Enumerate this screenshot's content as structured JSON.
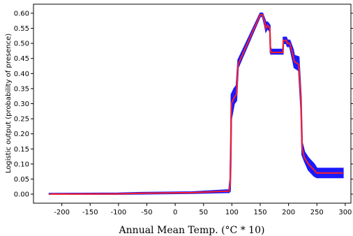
{
  "chart_data": {
    "type": "line",
    "title": "",
    "xlabel": "Annual Mean Temp. (°C * 10)",
    "ylabel": "Logistic output (probability of presence)",
    "xlim": [
      -250,
      310
    ],
    "ylim": [
      -0.03,
      0.63
    ],
    "xticks": [
      -200,
      -150,
      -100,
      -50,
      0,
      50,
      100,
      150,
      200,
      250,
      300
    ],
    "yticks": [
      0.0,
      0.05,
      0.1,
      0.15,
      0.2,
      0.25,
      0.3,
      0.35,
      0.4,
      0.45,
      0.5,
      0.55,
      0.6
    ],
    "grid": false,
    "series": [
      {
        "role": "mean response",
        "color": "#ff2020",
        "x": [
          -222,
          -100,
          -60,
          30,
          95,
          97,
          98,
          99,
          104,
          108,
          111,
          150,
          154,
          158,
          160,
          163,
          167,
          168,
          169,
          175,
          182,
          190,
          191,
          196,
          198,
          202,
          208,
          210,
          218,
          222,
          224,
          228,
          235,
          245,
          250,
          296
        ],
        "y": [
          0.0,
          0.001,
          0.003,
          0.005,
          0.01,
          0.03,
          0.15,
          0.3,
          0.32,
          0.33,
          0.43,
          0.595,
          0.595,
          0.57,
          0.55,
          0.56,
          0.55,
          0.48,
          0.47,
          0.47,
          0.47,
          0.47,
          0.51,
          0.51,
          0.5,
          0.5,
          0.46,
          0.44,
          0.43,
          0.3,
          0.15,
          0.12,
          0.1,
          0.08,
          0.07,
          0.07
        ]
      },
      {
        "role": "variability band",
        "color": "#1a1aff",
        "x": [
          -222,
          -100,
          -60,
          30,
          95,
          97,
          98,
          99,
          104,
          108,
          111,
          150,
          154,
          158,
          160,
          163,
          167,
          168,
          169,
          175,
          182,
          190,
          191,
          196,
          198,
          202,
          208,
          210,
          218,
          222,
          224,
          228,
          235,
          245,
          250,
          296
        ],
        "upper": [
          0.002,
          0.003,
          0.005,
          0.007,
          0.014,
          0.05,
          0.175,
          0.33,
          0.35,
          0.36,
          0.445,
          0.6,
          0.6,
          0.58,
          0.57,
          0.57,
          0.56,
          0.49,
          0.48,
          0.48,
          0.48,
          0.48,
          0.52,
          0.52,
          0.51,
          0.51,
          0.48,
          0.46,
          0.455,
          0.32,
          0.17,
          0.14,
          0.12,
          0.1,
          0.085,
          0.085
        ],
        "lower": [
          0.0,
          0.0,
          0.001,
          0.003,
          0.006,
          0.01,
          0.1,
          0.25,
          0.3,
          0.31,
          0.42,
          0.59,
          0.59,
          0.56,
          0.54,
          0.55,
          0.54,
          0.47,
          0.465,
          0.465,
          0.465,
          0.465,
          0.5,
          0.5,
          0.49,
          0.49,
          0.44,
          0.42,
          0.41,
          0.28,
          0.13,
          0.11,
          0.08,
          0.06,
          0.055,
          0.055
        ]
      }
    ]
  }
}
